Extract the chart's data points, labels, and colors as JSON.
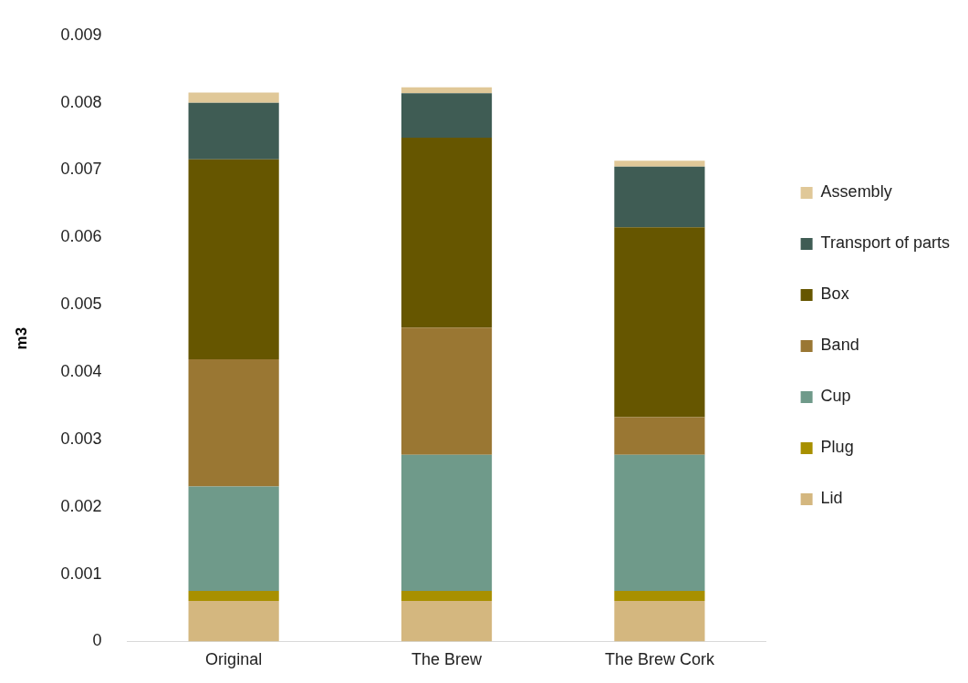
{
  "chart_data": {
    "type": "bar",
    "stacked": true,
    "ylabel": "m3",
    "categories": [
      "Original",
      "The Brew",
      "The Brew Cork"
    ],
    "series": [
      {
        "name": "Lid",
        "color": "#d4b77f",
        "values": [
          0.0006,
          0.0006,
          0.0006
        ]
      },
      {
        "name": "Plug",
        "color": "#a89000",
        "values": [
          0.00015,
          0.00015,
          0.00015
        ]
      },
      {
        "name": "Cup",
        "color": "#6f9a8a",
        "values": [
          0.00155,
          0.00202,
          0.00202
        ]
      },
      {
        "name": "Band",
        "color": "#9a7733",
        "values": [
          0.00189,
          0.00189,
          0.00056
        ]
      },
      {
        "name": "Box",
        "color": "#665600",
        "values": [
          0.00297,
          0.00282,
          0.00282
        ]
      },
      {
        "name": "Transport of parts",
        "color": "#3f5c54",
        "values": [
          0.00084,
          0.00066,
          0.0009
        ]
      },
      {
        "name": "Assembly",
        "color": "#e0c898",
        "values": [
          0.00015,
          9e-05,
          9e-05
        ]
      }
    ],
    "ylim": [
      0,
      0.009
    ],
    "yticks": [
      0,
      0.001,
      0.002,
      0.003,
      0.004,
      0.005,
      0.006,
      0.007,
      0.008,
      0.009
    ],
    "grid": false,
    "legend": "right"
  }
}
